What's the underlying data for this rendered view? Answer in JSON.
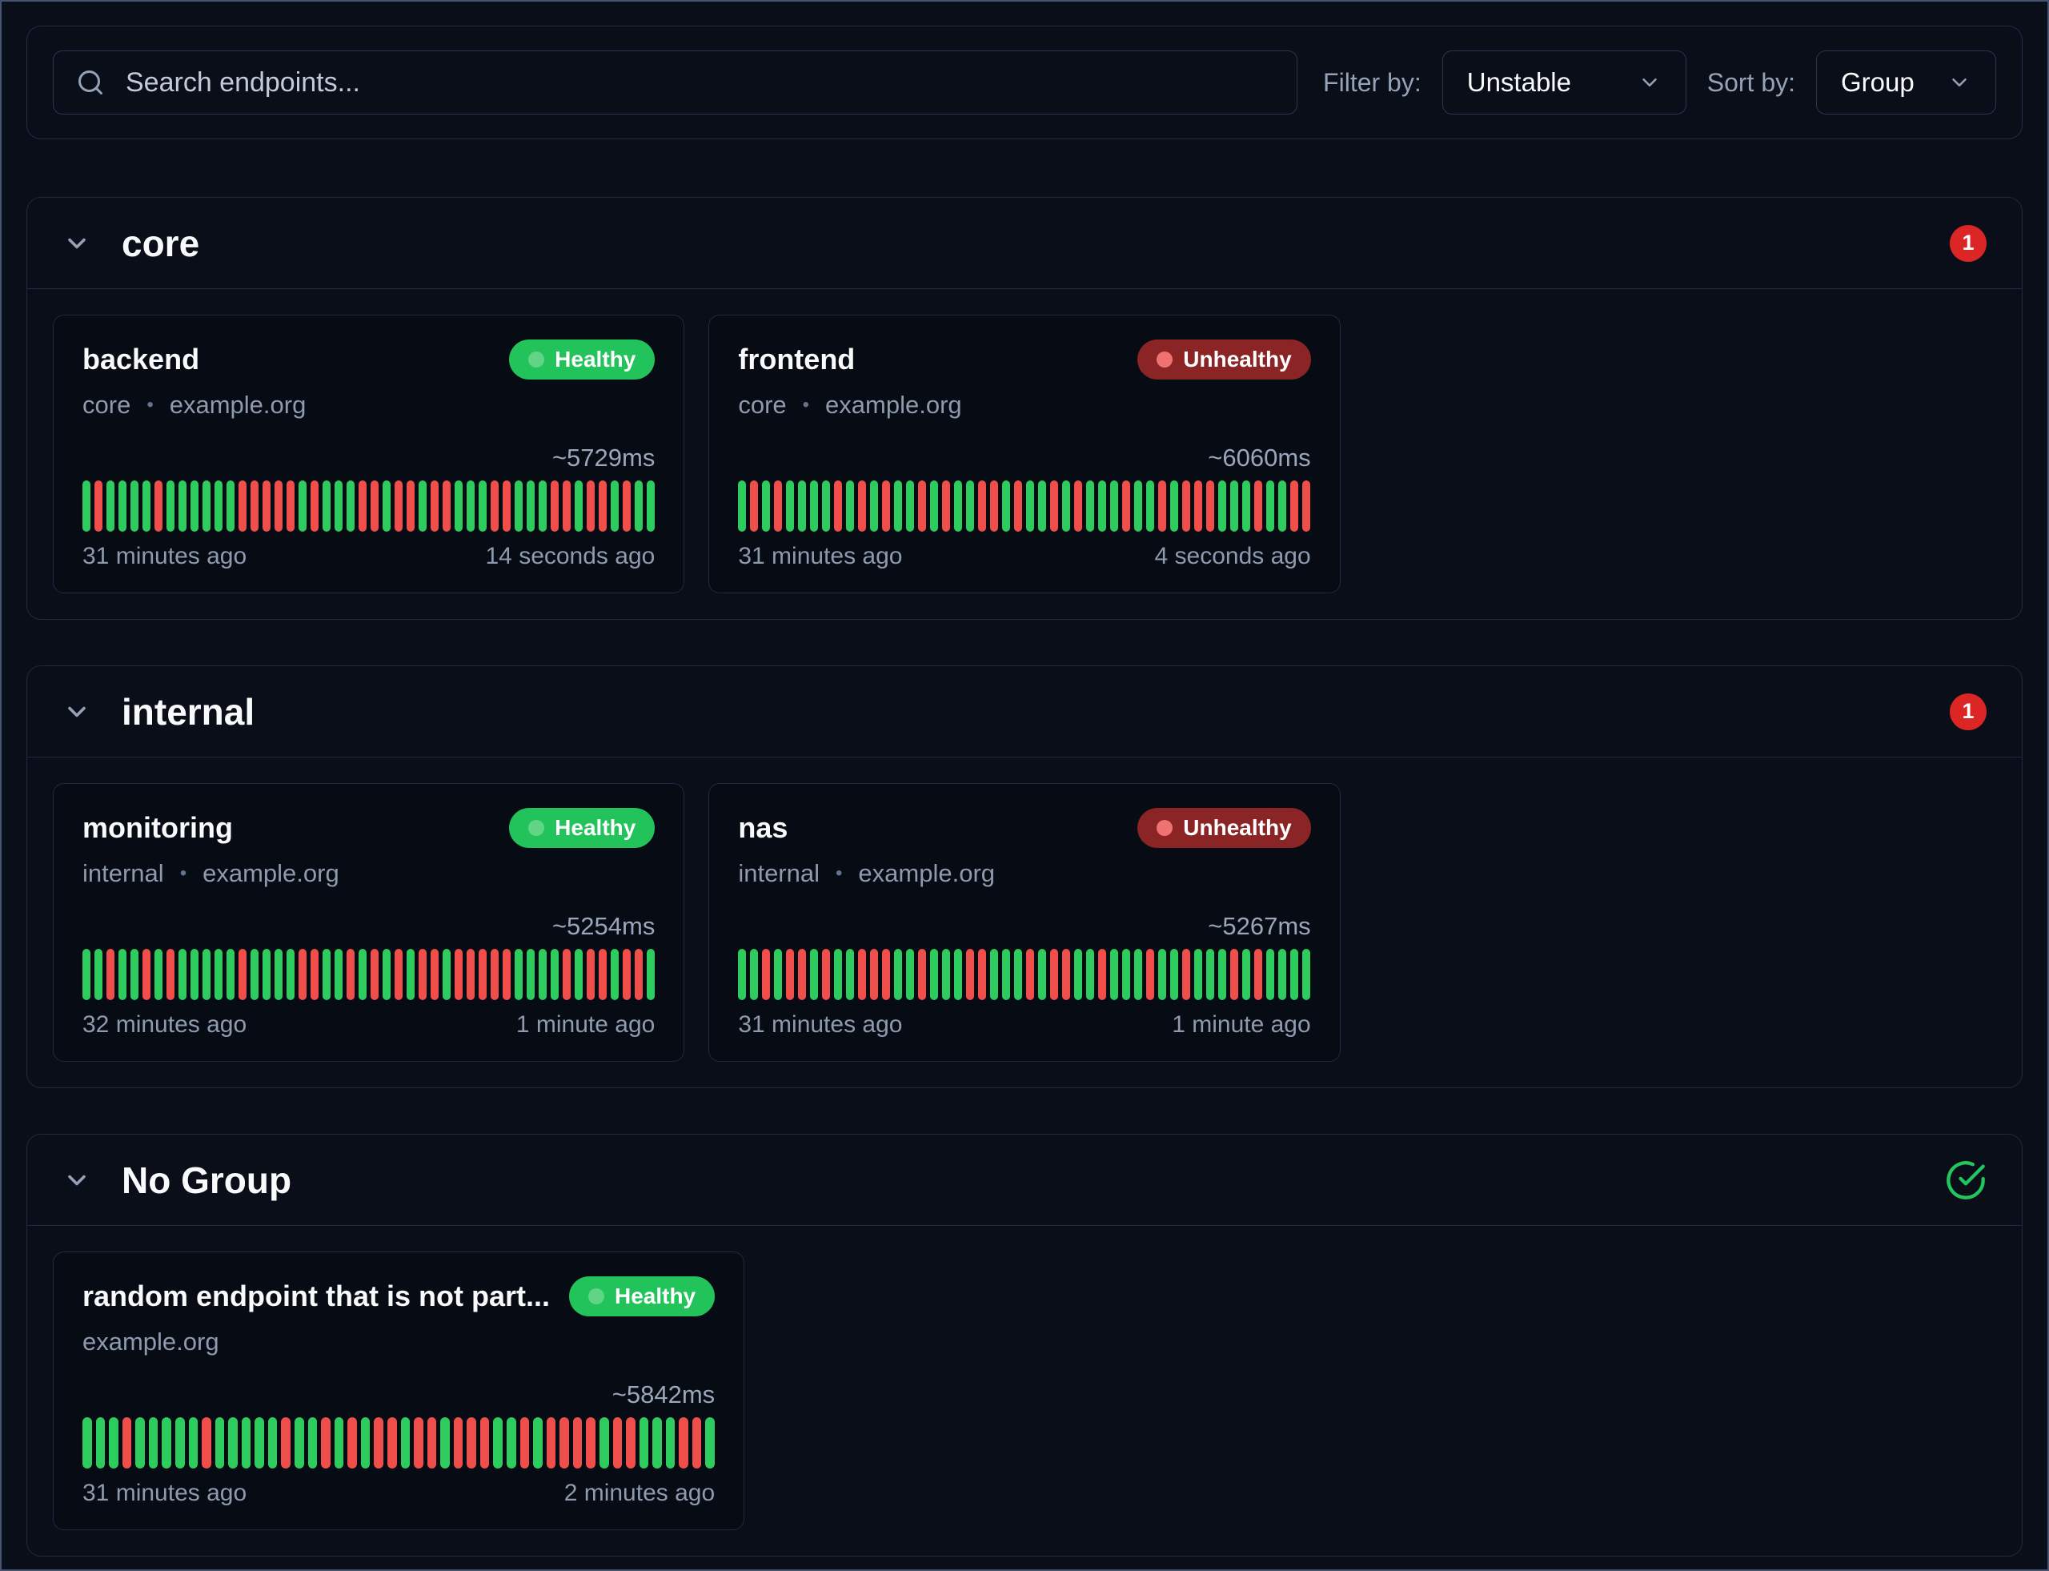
{
  "toolbar": {
    "search_placeholder": "Search endpoints...",
    "filter_label": "Filter by:",
    "filter_value": "Unstable",
    "sort_label": "Sort by:",
    "sort_value": "Group"
  },
  "ui": {
    "subtitle_separator": "•"
  },
  "colors": {
    "background": "#0a0e19",
    "card_background": "#070b14",
    "border": "#1f2940",
    "healthy_badge": "#23c35c",
    "unhealthy_badge": "#8b2424",
    "count_badge_red": "#dc2626",
    "check_icon_green": "#22c55e",
    "bar_up": "#2ecb5f",
    "bar_down": "#ef4e4b"
  },
  "groups": [
    {
      "name": "core",
      "indicator": {
        "type": "count",
        "value": "1"
      },
      "endpoints": [
        {
          "name": "backend",
          "group": "core",
          "host": "example.org",
          "status": "Healthy",
          "healthy": true,
          "response_time": "~5729ms",
          "oldest": "31 minutes ago",
          "newest": "14 seconds ago",
          "history": "GRGGGGRGGGGGGRRRRRGRGGGRRGRRGRRGGGRRGGGRRGRRGRGG"
        },
        {
          "name": "frontend",
          "group": "core",
          "host": "example.org",
          "status": "Unhealthy",
          "healthy": false,
          "response_time": "~6060ms",
          "oldest": "31 minutes ago",
          "newest": "4 seconds ago",
          "history": "GRGRGGGGRGRGRGGRGRGGRRGRGGRGRGGGRGGRGRRRGGGRGGRR"
        }
      ]
    },
    {
      "name": "internal",
      "indicator": {
        "type": "count",
        "value": "1"
      },
      "endpoints": [
        {
          "name": "monitoring",
          "group": "internal",
          "host": "example.org",
          "status": "Healthy",
          "healthy": true,
          "response_time": "~5254ms",
          "oldest": "32 minutes ago",
          "newest": "1 minute ago",
          "history": "GGRGGRGRGGGGGRGGGGRRGGRGRGRGRRGRRRRRGGGGRGRRGRRG"
        },
        {
          "name": "nas",
          "group": "internal",
          "host": "example.org",
          "status": "Unhealthy",
          "healthy": false,
          "response_time": "~5267ms",
          "oldest": "31 minutes ago",
          "newest": "1 minute ago",
          "history": "GGRGRRGRGGRRRGGRGGGRRGGGRGRRGGRGGGRGGRGGGRGRGGGG"
        }
      ]
    },
    {
      "name": "No Group",
      "indicator": {
        "type": "healthy-check"
      },
      "endpoints": [
        {
          "name": "random endpoint that is not part...",
          "group": null,
          "host": "example.org",
          "status": "Healthy",
          "healthy": true,
          "response_time": "~5842ms",
          "oldest": "31 minutes ago",
          "newest": "2 minutes ago",
          "history": "GGGRGGGGGRGGGGGRGGRGRGRRGRRGRRRGGRGRRRRGRRGGGRRG"
        }
      ]
    }
  ]
}
